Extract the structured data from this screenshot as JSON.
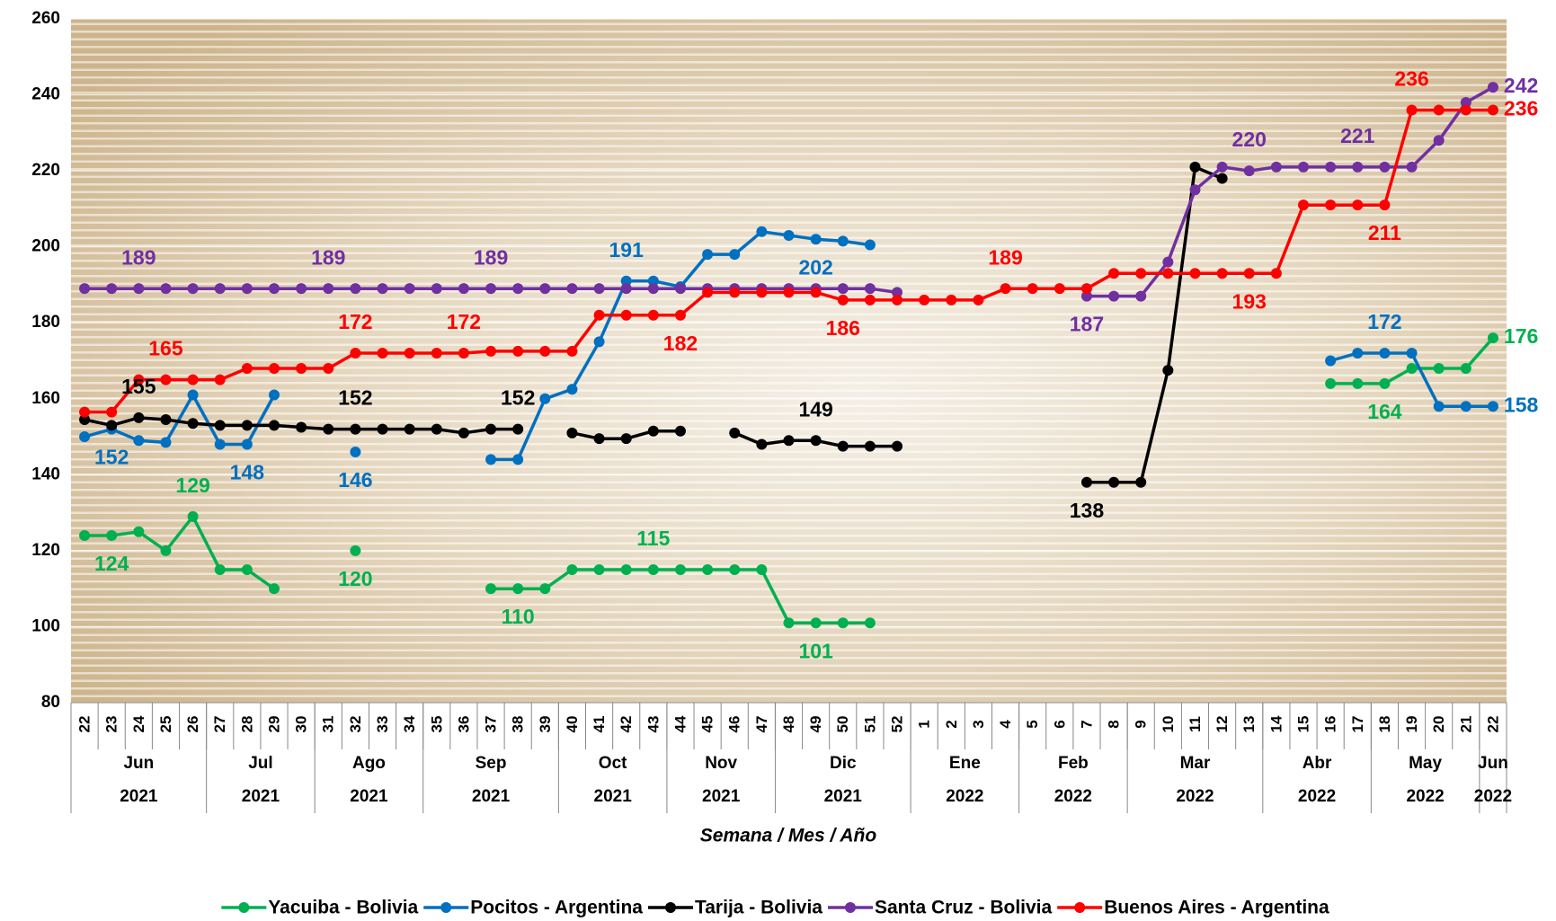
{
  "chart_data": {
    "type": "line",
    "x_title": "Semana / Mes / Año",
    "categories": [
      "22",
      "23",
      "24",
      "25",
      "26",
      "27",
      "28",
      "29",
      "30",
      "31",
      "32",
      "33",
      "34",
      "35",
      "36",
      "37",
      "38",
      "39",
      "40",
      "41",
      "42",
      "43",
      "44",
      "45",
      "46",
      "47",
      "48",
      "49",
      "50",
      "51",
      "52",
      "1",
      "2",
      "3",
      "4",
      "5",
      "6",
      "7",
      "8",
      "9",
      "10",
      "11",
      "12",
      "13",
      "14",
      "15",
      "16",
      "17",
      "18",
      "19",
      "20",
      "21",
      "22"
    ],
    "groups": [
      {
        "month": "Jun",
        "year": "2021",
        "weeks": 5
      },
      {
        "month": "Jul",
        "year": "2021",
        "weeks": 4
      },
      {
        "month": "Ago",
        "year": "2021",
        "weeks": 4
      },
      {
        "month": "Sep",
        "year": "2021",
        "weeks": 5
      },
      {
        "month": "Oct",
        "year": "2021",
        "weeks": 4
      },
      {
        "month": "Nov",
        "year": "2021",
        "weeks": 4
      },
      {
        "month": "Dic",
        "year": "2021",
        "weeks": 5
      },
      {
        "month": "Ene",
        "year": "2022",
        "weeks": 4
      },
      {
        "month": "Feb",
        "year": "2022",
        "weeks": 4
      },
      {
        "month": "Mar",
        "year": "2022",
        "weeks": 5
      },
      {
        "month": "Abr",
        "year": "2022",
        "weeks": 4
      },
      {
        "month": "May",
        "year": "2022",
        "weeks": 4
      },
      {
        "month": "Jun",
        "year": "2022",
        "weeks": 1
      }
    ],
    "ylim": [
      80,
      260
    ],
    "yticks": [
      80,
      100,
      120,
      140,
      160,
      180,
      200,
      220,
      240,
      260
    ],
    "series": [
      {
        "name": "Yacuiba - Bolivia",
        "color": "#00b050",
        "values": [
          124,
          124,
          125,
          120,
          129,
          115,
          115,
          110,
          null,
          null,
          120,
          null,
          null,
          null,
          null,
          110,
          110,
          110,
          115,
          115,
          115,
          115,
          115,
          115,
          115,
          115,
          101,
          101,
          101,
          101,
          null,
          null,
          null,
          null,
          null,
          null,
          null,
          null,
          null,
          null,
          null,
          null,
          null,
          null,
          null,
          null,
          164,
          164,
          164,
          168,
          168,
          168,
          176
        ],
        "labels": [
          {
            "index": 1,
            "pos": "below"
          },
          {
            "index": 4,
            "pos": "above"
          },
          {
            "index": 10,
            "pos": "below"
          },
          {
            "index": 16,
            "pos": "below"
          },
          {
            "index": 21,
            "pos": "above"
          },
          {
            "index": 27,
            "pos": "below"
          },
          {
            "index": 48,
            "pos": "below"
          },
          {
            "index": 52,
            "pos": "right"
          }
        ]
      },
      {
        "name": "Pocitos - Argentina",
        "color": "#0070c0",
        "values": [
          150,
          152,
          149,
          148.5,
          161,
          148,
          148,
          161,
          null,
          null,
          146,
          null,
          null,
          null,
          null,
          144,
          144,
          160,
          162.5,
          175,
          191,
          191,
          189.5,
          198,
          198,
          204,
          203,
          202,
          201.5,
          200.5,
          null,
          null,
          null,
          null,
          null,
          null,
          null,
          null,
          null,
          null,
          null,
          null,
          null,
          null,
          null,
          null,
          170,
          172,
          172,
          172,
          158,
          158,
          158
        ],
        "labels": [
          {
            "index": 1,
            "pos": "below"
          },
          {
            "index": 6,
            "pos": "below"
          },
          {
            "index": 10,
            "pos": "below"
          },
          {
            "index": 20,
            "pos": "above"
          },
          {
            "index": 27,
            "pos": "below"
          },
          {
            "index": 48,
            "pos": "above"
          },
          {
            "index": 52,
            "pos": "right"
          }
        ]
      },
      {
        "name": "Tarija - Bolivia",
        "color": "#000000",
        "values": [
          154.5,
          153,
          155,
          154.5,
          153.5,
          153,
          153,
          153,
          152.5,
          152,
          152,
          152,
          152,
          152,
          151,
          152,
          152,
          null,
          151,
          149.5,
          149.5,
          151.5,
          151.5,
          null,
          151,
          148,
          149,
          149,
          147.5,
          147.5,
          147.5,
          null,
          null,
          null,
          null,
          null,
          null,
          138,
          138,
          138,
          167.5,
          221,
          218,
          null,
          null,
          null,
          null,
          null,
          null,
          null,
          null,
          null,
          null
        ],
        "labels": [
          {
            "index": 2,
            "pos": "above"
          },
          {
            "index": 10,
            "pos": "above"
          },
          {
            "index": 16,
            "pos": "above"
          },
          {
            "index": 27,
            "pos": "above"
          },
          {
            "index": 37,
            "pos": "below"
          }
        ]
      },
      {
        "name": "Santa Cruz - Bolivia",
        "color": "#7030a0",
        "values": [
          189,
          189,
          189,
          189,
          189,
          189,
          189,
          189,
          189,
          189,
          189,
          189,
          189,
          189,
          189,
          189,
          189,
          189,
          189,
          189,
          189,
          189,
          189,
          189,
          189,
          189,
          189,
          189,
          189,
          189,
          188,
          null,
          null,
          null,
          null,
          null,
          null,
          187,
          187,
          187,
          196,
          215,
          221,
          220,
          221,
          221,
          221,
          221,
          221,
          221,
          228,
          238,
          242
        ],
        "labels": [
          {
            "index": 2,
            "pos": "above"
          },
          {
            "index": 9,
            "pos": "above"
          },
          {
            "index": 15,
            "pos": "above"
          },
          {
            "index": 43,
            "pos": "above"
          },
          {
            "index": 47,
            "pos": "above"
          },
          {
            "index": 52,
            "pos": "right"
          },
          {
            "index": 37,
            "pos": "below"
          }
        ]
      },
      {
        "name": "Buenos Aires - Argentina",
        "color": "#ff0000",
        "values": [
          156.5,
          156.5,
          165,
          165,
          165,
          165,
          168,
          168,
          168,
          168,
          172,
          172,
          172,
          172,
          172,
          172.5,
          172.5,
          172.5,
          172.5,
          182,
          182,
          182,
          182,
          188,
          188,
          188,
          188,
          188,
          186,
          186,
          186,
          186,
          186,
          186,
          189,
          189,
          189,
          189,
          193,
          193,
          193,
          193,
          193,
          193,
          193,
          211,
          211,
          211,
          211,
          236,
          236,
          236,
          236
        ],
        "labels": [
          {
            "index": 3,
            "pos": "above"
          },
          {
            "index": 10,
            "pos": "above"
          },
          {
            "index": 14,
            "pos": "above"
          },
          {
            "index": 22,
            "pos": "below"
          },
          {
            "index": 28,
            "pos": "below"
          },
          {
            "index": 34,
            "pos": "above"
          },
          {
            "index": 43,
            "pos": "below"
          },
          {
            "index": 48,
            "pos": "below"
          },
          {
            "index": 49,
            "pos": "above"
          },
          {
            "index": 52,
            "pos": "right"
          }
        ]
      }
    ]
  }
}
